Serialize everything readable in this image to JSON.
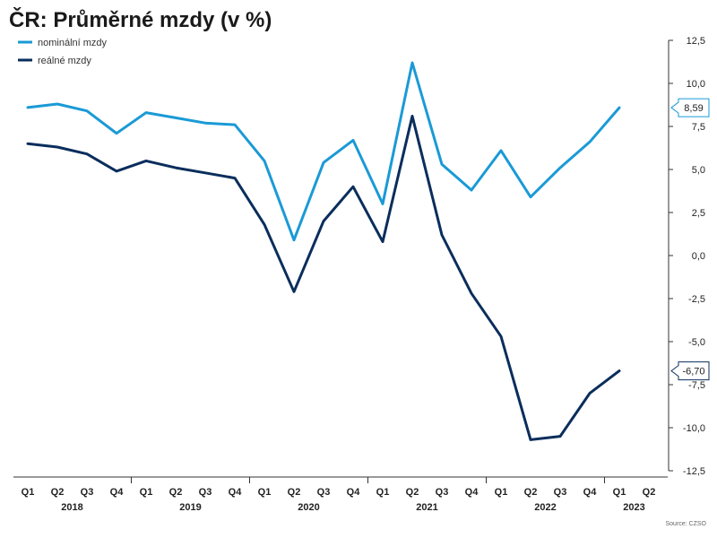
{
  "title": "ČR: Průměrné mzdy (v %)",
  "source": "Source: CZSO",
  "colors": {
    "nominal": "#1a9ad6",
    "real": "#0a2e5c",
    "axis": "#333333"
  },
  "chart_data": {
    "type": "line",
    "title": "ČR: Průměrné mzdy (v %)",
    "xlabel": "",
    "ylabel": "",
    "ylim": [
      -12.5,
      12.5
    ],
    "yticks": [
      "12,5",
      "10,0",
      "7,5",
      "5,0",
      "2,5",
      "0,0",
      "-2,5",
      "-5,0",
      "-7,5",
      "-10,0",
      "-12,5"
    ],
    "ytick_values": [
      12.5,
      10,
      7.5,
      5,
      2.5,
      0,
      -2.5,
      -5,
      -7.5,
      -10,
      -12.5
    ],
    "categories": [
      "Q1",
      "Q2",
      "Q3",
      "Q4",
      "Q1",
      "Q2",
      "Q3",
      "Q4",
      "Q1",
      "Q2",
      "Q3",
      "Q4",
      "Q1",
      "Q2",
      "Q3",
      "Q4",
      "Q1",
      "Q2",
      "Q3",
      "Q4",
      "Q1",
      "Q2"
    ],
    "years": [
      {
        "label": "2018",
        "start": 0,
        "end": 3
      },
      {
        "label": "2019",
        "start": 4,
        "end": 7
      },
      {
        "label": "2020",
        "start": 8,
        "end": 11
      },
      {
        "label": "2021",
        "start": 12,
        "end": 15
      },
      {
        "label": "2022",
        "start": 16,
        "end": 19
      },
      {
        "label": "2023",
        "start": 20,
        "end": 21
      }
    ],
    "legend_position": "top-left",
    "grid": false,
    "series": [
      {
        "name": "nominální mzdy",
        "color": "#1a9ad6",
        "values": [
          8.6,
          8.8,
          8.4,
          7.1,
          8.3,
          8.0,
          7.7,
          7.6,
          5.5,
          0.9,
          5.4,
          6.7,
          3.0,
          11.2,
          5.3,
          3.8,
          6.1,
          3.4,
          5.1,
          6.6,
          8.59,
          null
        ],
        "end_label": "8,59"
      },
      {
        "name": "reálné mzdy",
        "color": "#0a2e5c",
        "values": [
          6.5,
          6.3,
          5.9,
          4.9,
          5.5,
          5.1,
          4.8,
          4.5,
          1.8,
          -2.1,
          2.0,
          4.0,
          0.8,
          8.1,
          1.2,
          -2.2,
          -4.7,
          -10.7,
          -10.5,
          -8.0,
          -6.7,
          null
        ],
        "end_label": "-6,70"
      }
    ]
  }
}
